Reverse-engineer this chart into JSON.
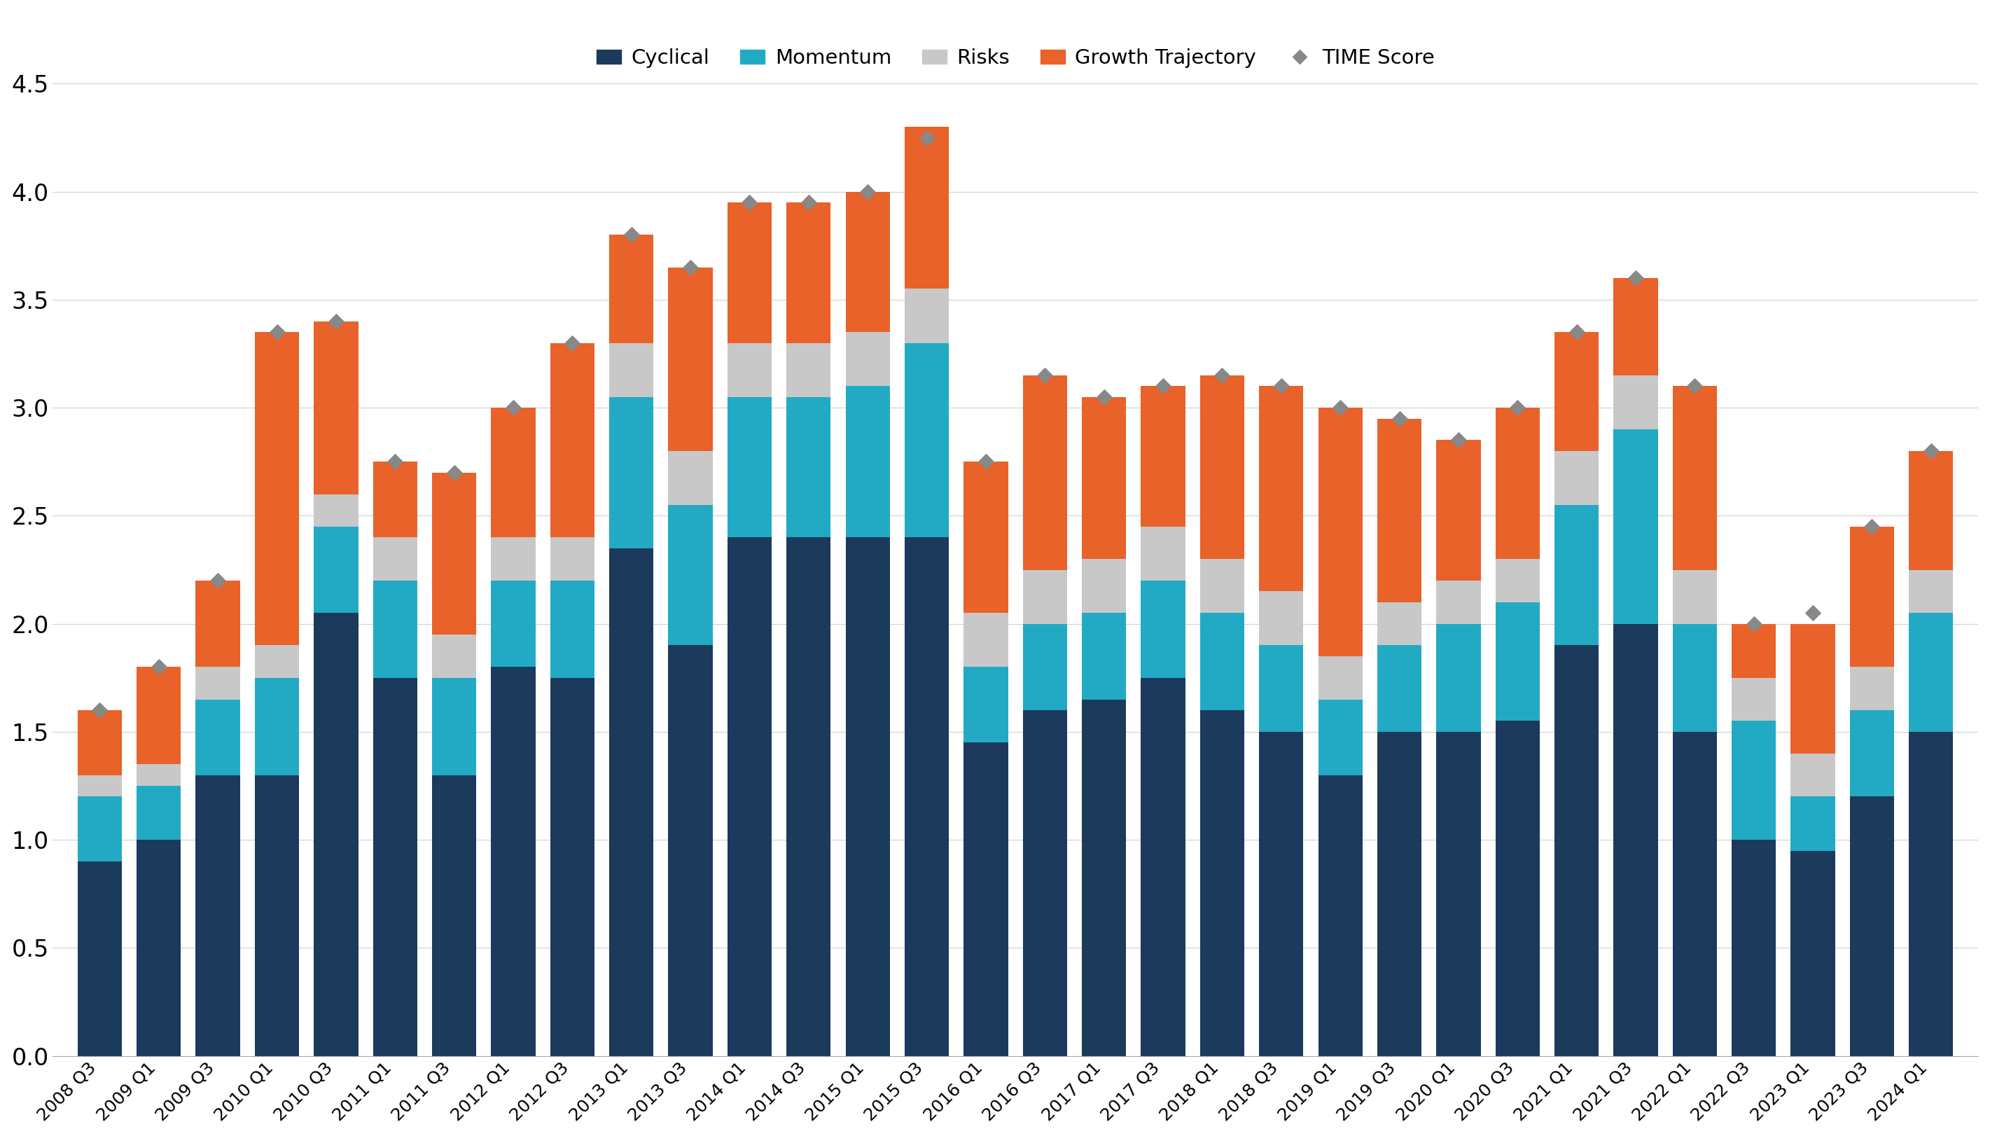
{
  "categories": [
    "2008 Q3",
    "2009 Q1",
    "2009 Q3",
    "2010 Q1",
    "2010 Q3",
    "2011 Q1",
    "2011 Q3",
    "2012 Q1",
    "2012 Q3",
    "2013 Q1",
    "2013 Q3",
    "2014 Q1",
    "2014 Q3",
    "2015 Q1",
    "2015 Q3",
    "2016 Q1",
    "2016 Q3",
    "2017 Q1",
    "2017 Q3",
    "2018 Q1",
    "2018 Q3",
    "2019 Q1",
    "2019 Q3",
    "2020 Q1",
    "2020 Q3",
    "2021 Q1",
    "2021 Q3",
    "2022 Q1",
    "2022 Q3",
    "2023 Q1",
    "2023 Q3",
    "2024 Q1"
  ],
  "cyclical": [
    0.9,
    1.0,
    1.3,
    1.3,
    2.05,
    1.75,
    1.3,
    1.8,
    1.75,
    2.35,
    1.9,
    2.4,
    2.4,
    2.4,
    2.4,
    1.45,
    1.6,
    1.65,
    1.75,
    1.6,
    1.5,
    1.3,
    1.5,
    1.5,
    1.55,
    1.9,
    2.0,
    1.5,
    1.0,
    0.95,
    1.2,
    1.5
  ],
  "momentum": [
    0.3,
    0.25,
    0.35,
    0.45,
    0.4,
    0.45,
    0.45,
    0.4,
    0.45,
    0.7,
    0.65,
    0.65,
    0.65,
    0.7,
    0.9,
    0.35,
    0.4,
    0.4,
    0.45,
    0.45,
    0.4,
    0.35,
    0.4,
    0.5,
    0.55,
    0.65,
    0.9,
    0.5,
    0.55,
    0.25,
    0.4,
    0.55
  ],
  "risks": [
    0.1,
    0.1,
    0.15,
    0.15,
    0.15,
    0.2,
    0.2,
    0.2,
    0.2,
    0.25,
    0.25,
    0.25,
    0.25,
    0.25,
    0.25,
    0.25,
    0.25,
    0.25,
    0.25,
    0.25,
    0.25,
    0.2,
    0.2,
    0.2,
    0.2,
    0.25,
    0.25,
    0.25,
    0.2,
    0.2,
    0.2,
    0.2
  ],
  "growth_trajectory": [
    0.3,
    0.45,
    0.4,
    1.45,
    0.8,
    0.35,
    0.75,
    0.6,
    0.9,
    0.5,
    0.85,
    0.65,
    0.65,
    0.65,
    0.75,
    0.7,
    0.9,
    0.75,
    0.65,
    0.85,
    0.95,
    1.15,
    0.85,
    0.65,
    0.7,
    0.55,
    0.45,
    0.85,
    0.25,
    0.6,
    0.65,
    0.55
  ],
  "time_score": [
    1.6,
    1.8,
    2.2,
    3.35,
    3.4,
    2.75,
    2.7,
    3.0,
    3.3,
    3.8,
    3.65,
    3.95,
    3.95,
    4.0,
    4.25,
    2.75,
    3.15,
    3.05,
    3.1,
    3.15,
    3.1,
    3.0,
    2.95,
    2.85,
    3.0,
    3.35,
    3.6,
    3.1,
    2.0,
    2.05,
    2.45,
    2.8
  ],
  "colors": {
    "cyclical": "#1b3a5c",
    "momentum": "#22aac4",
    "risks": "#c8c8c8",
    "growth_trajectory": "#e8622a",
    "time_score": "#888888"
  },
  "ylim": [
    0,
    4.5
  ],
  "yticks": [
    0.0,
    0.5,
    1.0,
    1.5,
    2.0,
    2.5,
    3.0,
    3.5,
    4.0,
    4.5
  ],
  "background_color": "#ffffff",
  "figsize": [
    28.42,
    16.22
  ]
}
